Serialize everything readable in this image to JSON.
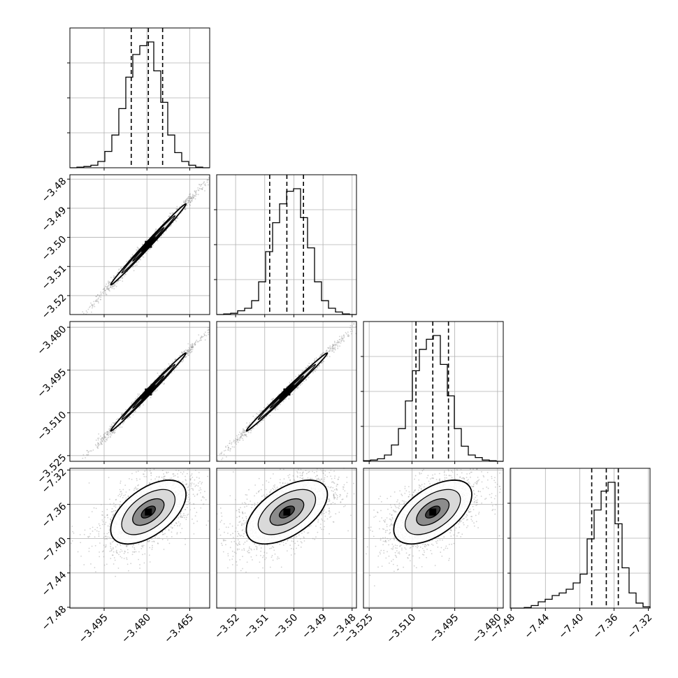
{
  "chart_data": {
    "type": "corner",
    "grid": true,
    "params": [
      {
        "range": [
          -3.507,
          -3.458
        ],
        "ticks": [
          -3.495,
          -3.48,
          -3.465
        ],
        "tick_labels": [
          "−3.495",
          "−3.480",
          "−3.465"
        ],
        "quantiles": [
          -3.4855,
          -3.4795,
          -3.4745
        ]
      },
      {
        "range": [
          -3.5265,
          -3.4785
        ],
        "ticks": [
          -3.52,
          -3.51,
          -3.5,
          -3.49,
          -3.48
        ],
        "tick_labels": [
          "−3.52",
          "−3.51",
          "−3.50",
          "−3.49",
          "−3.48"
        ],
        "quantiles": [
          -3.5083,
          -3.5024,
          -3.4967
        ]
      },
      {
        "range": [
          -3.527,
          -3.478
        ],
        "ticks": [
          -3.525,
          -3.51,
          -3.495,
          -3.48
        ],
        "tick_labels": [
          "−3.525",
          "−3.510",
          "−3.495",
          "−3.480"
        ],
        "quantiles": [
          -3.5086,
          -3.5027,
          -3.4972
        ]
      },
      {
        "range": [
          -7.481,
          -7.318
        ],
        "ticks": [
          -7.48,
          -7.44,
          -7.4,
          -7.36,
          -7.32
        ],
        "tick_labels": [
          "−7.48",
          "−7.44",
          "−7.40",
          "−7.36",
          "−7.32"
        ],
        "quantiles": [
          -7.386,
          -7.369,
          -7.355
        ]
      }
    ],
    "histograms": [
      [
        0.0,
        0.005,
        0.01,
        0.02,
        0.05,
        0.13,
        0.26,
        0.47,
        0.72,
        0.9,
        0.97,
        1.0,
        0.77,
        0.52,
        0.26,
        0.12,
        0.05,
        0.02,
        0.005,
        0.0
      ],
      [
        0.0,
        0.005,
        0.01,
        0.03,
        0.05,
        0.11,
        0.26,
        0.5,
        0.73,
        0.88,
        0.98,
        1.0,
        0.77,
        0.53,
        0.26,
        0.11,
        0.05,
        0.02,
        0.005,
        0.0
      ],
      [
        0.005,
        0.01,
        0.02,
        0.05,
        0.13,
        0.26,
        0.48,
        0.72,
        0.89,
        0.97,
        1.0,
        0.77,
        0.52,
        0.26,
        0.12,
        0.05,
        0.03,
        0.01,
        0.005,
        0.0
      ],
      [
        0.0,
        0.0,
        0.005,
        0.02,
        0.05,
        0.07,
        0.1,
        0.12,
        0.15,
        0.2,
        0.27,
        0.55,
        0.78,
        0.93,
        1.0,
        0.67,
        0.32,
        0.12,
        0.04,
        0.01
      ]
    ],
    "correlations": {
      "1-0": 0.995,
      "2-0": 0.995,
      "2-1": 0.995,
      "3-0": 0.55,
      "3-1": 0.55,
      "3-2": 0.55
    },
    "samples_per_panel": 1500,
    "colors": {
      "hist": "#000000",
      "contour": "#000000",
      "points": "#999999",
      "grid": "#b0b0b0",
      "axis": "#000000"
    }
  }
}
